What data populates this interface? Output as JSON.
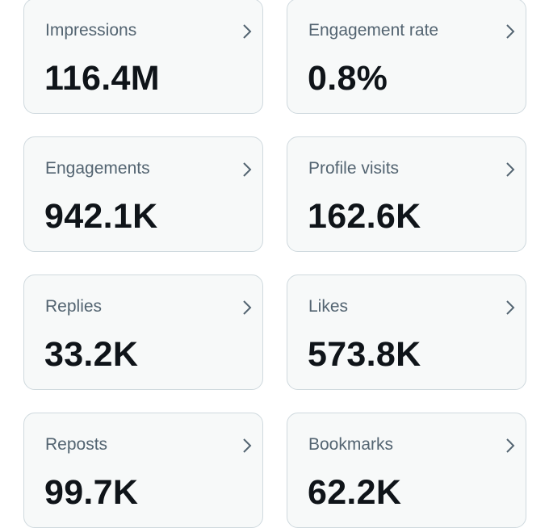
{
  "cards": [
    {
      "label": "Impressions",
      "value": "116.4M"
    },
    {
      "label": "Engagement rate",
      "value": "0.8%"
    },
    {
      "label": "Engagements",
      "value": "942.1K"
    },
    {
      "label": "Profile visits",
      "value": "162.6K"
    },
    {
      "label": "Replies",
      "value": "33.2K"
    },
    {
      "label": "Likes",
      "value": "573.8K"
    },
    {
      "label": "Reposts",
      "value": "99.7K"
    },
    {
      "label": "Bookmarks",
      "value": "62.2K"
    }
  ]
}
